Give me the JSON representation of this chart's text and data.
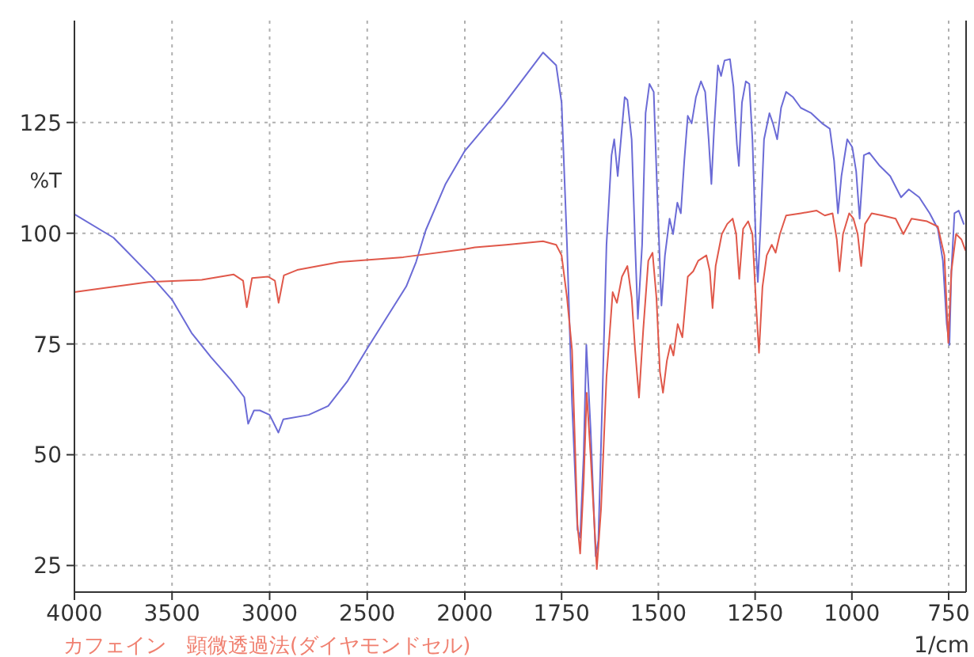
{
  "chart_data": [
    {
      "type": "line",
      "ylabel": "%T",
      "annotations": [
        "カフェイン　顕微透過法(ダイヤモンドセル)"
      ],
      "xlim": [
        4000,
        2000
      ],
      "xticks": [
        4000,
        3500,
        3000,
        2500,
        2000
      ],
      "ylim": [
        19,
        148
      ],
      "yticks": [
        25,
        50,
        75,
        100,
        125
      ],
      "grid": true,
      "line_style": "solid",
      "series": [
        {
          "color": "#6b6bd6",
          "x": [
            4000,
            3800,
            3600,
            3500,
            3400,
            3300,
            3200,
            3130,
            3110,
            3080,
            3050,
            3000,
            2955,
            2930,
            2800,
            2700,
            2600,
            2500,
            2400,
            2300,
            2250,
            2200,
            2100,
            2000
          ],
          "values": [
            104.3,
            99,
            90,
            85,
            77.5,
            72,
            67,
            63,
            57,
            60,
            60,
            59,
            55,
            58,
            59,
            61,
            66.7,
            74,
            81,
            88,
            93.5,
            100.7,
            111,
            118.6
          ]
        },
        {
          "color": "#e0584a",
          "x": [
            4000,
            3837,
            3620,
            3348,
            3185,
            3136,
            3117,
            3090,
            3008,
            2973,
            2954,
            2927,
            2859,
            2641,
            2315,
            2000
          ],
          "values": [
            86.7,
            87.7,
            89,
            89.5,
            90.7,
            89.3,
            83.3,
            89.9,
            90.2,
            89.3,
            84.3,
            90.5,
            91.7,
            93.5,
            94.6,
            96.4
          ]
        }
      ]
    },
    {
      "type": "line",
      "xlabel": "1/cm",
      "tick_labels": "x",
      "xlim": [
        2000,
        705
      ],
      "xticks": [
        1750,
        1500,
        1250,
        1000,
        750
      ],
      "ylim": [
        19,
        148
      ],
      "yticks": [
        25,
        50,
        75,
        100,
        125
      ],
      "grid": true,
      "line_style": "solid",
      "series": [
        {
          "color": "#6b6bd6",
          "x": [
            2000,
            1900,
            1798,
            1764,
            1750,
            1736,
            1723,
            1709,
            1702,
            1693,
            1686,
            1675,
            1662,
            1655,
            1645,
            1634,
            1621,
            1614,
            1605,
            1587,
            1580,
            1569,
            1560,
            1553,
            1542,
            1533,
            1523,
            1512,
            1503,
            1492,
            1483,
            1471,
            1462,
            1451,
            1442,
            1433,
            1424,
            1414,
            1403,
            1390,
            1379,
            1370,
            1363,
            1356,
            1346,
            1338,
            1329,
            1315,
            1306,
            1297,
            1292,
            1284,
            1274,
            1265,
            1257,
            1247,
            1243,
            1237,
            1227,
            1213,
            1204,
            1193,
            1183,
            1170,
            1152,
            1132,
            1105,
            1077,
            1057,
            1046,
            1036,
            1027,
            1012,
            999,
            989,
            980,
            969,
            955,
            928,
            901,
            873,
            853,
            826,
            799,
            778,
            765,
            755,
            748,
            743,
            735,
            724,
            711
          ],
          "values": [
            118.6,
            129,
            140.8,
            137.9,
            129.5,
            97.4,
            61.7,
            33.1,
            31.3,
            49.8,
            74.8,
            55.7,
            27.1,
            30.7,
            61.7,
            97.4,
            117.6,
            121.2,
            112.9,
            130.7,
            130.1,
            121.2,
            97.4,
            80.7,
            97.4,
            127.1,
            133.7,
            131.9,
            109.3,
            83.7,
            95,
            103.3,
            99.8,
            106.9,
            104.5,
            116.4,
            126.5,
            124.8,
            130.7,
            134.3,
            131.9,
            121.2,
            111.1,
            123.6,
            137.9,
            135.5,
            139,
            139.3,
            133.1,
            120,
            115.2,
            129.5,
            134.3,
            133.7,
            121.2,
            95,
            89,
            99.8,
            121.2,
            127.1,
            124.8,
            121.2,
            128.3,
            131.9,
            130.7,
            128.3,
            127.1,
            124.8,
            123.6,
            116.4,
            104.5,
            112.9,
            121.2,
            119.4,
            114,
            103.3,
            117.6,
            118.2,
            115.2,
            112.9,
            108.1,
            109.9,
            108.1,
            104.5,
            101,
            93.8,
            79.5,
            74.8,
            91.4,
            104.5,
            105.1,
            102.1
          ]
        },
        {
          "color": "#e0584a",
          "x": [
            2000,
            1974,
            1893,
            1798,
            1764,
            1750,
            1736,
            1723,
            1709,
            1702,
            1693,
            1685,
            1675,
            1659,
            1648,
            1634,
            1618,
            1607,
            1594,
            1580,
            1569,
            1560,
            1550,
            1539,
            1526,
            1515,
            1505,
            1496,
            1488,
            1478,
            1469,
            1461,
            1450,
            1438,
            1424,
            1410,
            1397,
            1376,
            1367,
            1360,
            1352,
            1336,
            1322,
            1308,
            1299,
            1291,
            1281,
            1268,
            1257,
            1247,
            1240,
            1231,
            1220,
            1207,
            1197,
            1186,
            1170,
            1132,
            1091,
            1070,
            1050,
            1039,
            1032,
            1023,
            1007,
            996,
            985,
            976,
            966,
            949,
            921,
            887,
            867,
            846,
            806,
            778,
            761,
            751,
            743,
            731,
            717,
            707
          ],
          "values": [
            96.4,
            96.8,
            97.4,
            98.2,
            97.4,
            95,
            85.5,
            73.6,
            34.3,
            27.7,
            43.8,
            64,
            49.8,
            24.2,
            37.9,
            67.6,
            86.7,
            84.3,
            90.2,
            92.6,
            85.5,
            73.6,
            62.9,
            78.3,
            93.8,
            95.6,
            85.5,
            68.8,
            64,
            71.2,
            74.8,
            72.4,
            79.5,
            76.5,
            90.2,
            91.4,
            93.8,
            95,
            91.4,
            83.1,
            92.6,
            99.8,
            102.1,
            103.3,
            99.8,
            89.7,
            101,
            102.7,
            99.8,
            83.1,
            73,
            87.9,
            95,
            97.4,
            95.6,
            99.8,
            104,
            104.5,
            105.1,
            104,
            104.5,
            98.6,
            91.4,
            99.8,
            104.5,
            103.3,
            99.8,
            92.6,
            102.1,
            104.5,
            104,
            103.3,
            99.8,
            103.3,
            102.7,
            101.5,
            95,
            75.3,
            91.4,
            99.8,
            98.6,
            96.2
          ]
        }
      ]
    }
  ]
}
